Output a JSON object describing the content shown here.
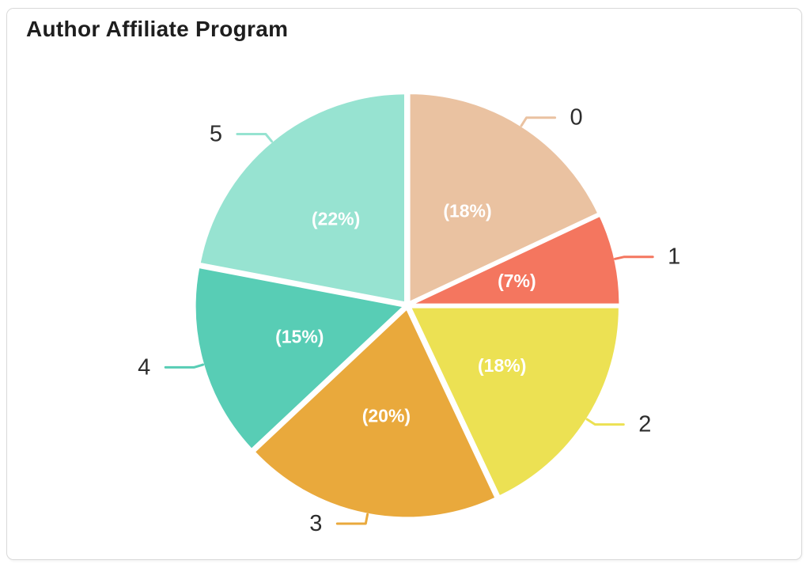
{
  "header": {
    "title": "Author Affiliate Program"
  },
  "chart_data": {
    "type": "pie",
    "title": "Author Affiliate Program",
    "direction": "clockwise",
    "start_angle_deg": 0,
    "legend": "none",
    "slices": [
      {
        "label": "0",
        "value": 18,
        "display": "(18%)",
        "color": "#eac2a1"
      },
      {
        "label": "1",
        "value": 7,
        "display": "(7%)",
        "color": "#f4765f"
      },
      {
        "label": "2",
        "value": 18,
        "display": "(18%)",
        "color": "#ece153"
      },
      {
        "label": "3",
        "value": 20,
        "display": "(20%)",
        "color": "#e9a93c"
      },
      {
        "label": "4",
        "value": 15,
        "display": "(15%)",
        "color": "#58cdb5"
      },
      {
        "label": "5",
        "value": 22,
        "display": "(22%)",
        "color": "#97e3d1"
      }
    ],
    "inner_label_color": "#ffffff",
    "outer_label_color": "#2d2d2d",
    "slice_gap_color": "#ffffff"
  }
}
